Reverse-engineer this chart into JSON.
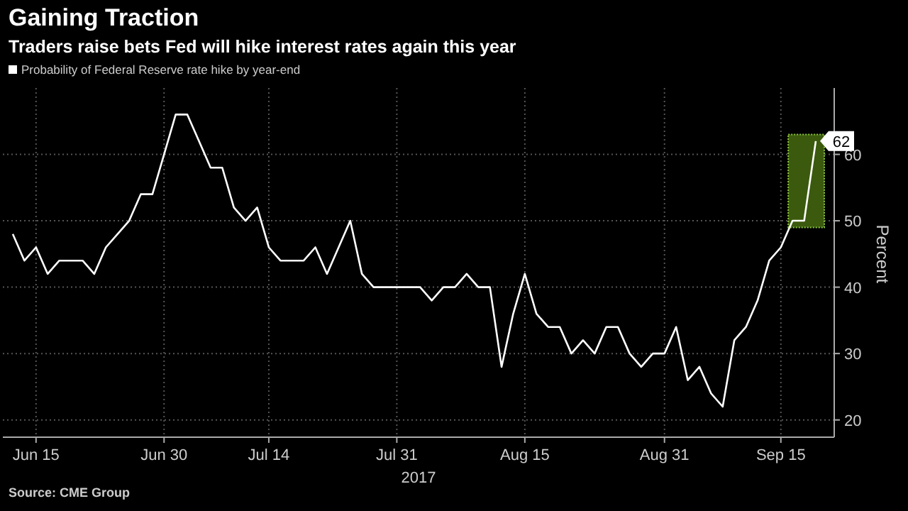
{
  "chart_data": {
    "type": "line",
    "title": "Gaining Traction",
    "subtitle": "Traders raise bets Fed will hike interest rates again this year",
    "xlabel": "2017",
    "ylabel": "Percent",
    "annotations": [
      "Source: CME Group"
    ],
    "categories": [
      null,
      null,
      "Jun 15",
      null,
      null,
      null,
      null,
      null,
      null,
      null,
      null,
      null,
      null,
      "Jun 30",
      null,
      null,
      null,
      null,
      null,
      null,
      null,
      null,
      "Jul 14",
      null,
      null,
      null,
      null,
      null,
      null,
      null,
      null,
      null,
      null,
      "Jul 31",
      null,
      null,
      null,
      null,
      null,
      null,
      null,
      null,
      null,
      null,
      "Aug 15",
      null,
      null,
      null,
      null,
      null,
      null,
      null,
      null,
      null,
      null,
      null,
      "Aug 31",
      null,
      null,
      null,
      null,
      null,
      null,
      null,
      null,
      null,
      "Sep 15",
      null,
      null,
      null
    ],
    "series": [
      {
        "name": "Probability of Federal Reserve rate hike by year-end",
        "color": "#ffffff",
        "values": [
          48,
          44,
          46,
          42,
          44,
          44,
          44,
          42,
          46,
          48,
          50,
          54,
          54,
          60,
          66,
          66,
          62,
          58,
          58,
          52,
          50,
          52,
          46,
          44,
          44,
          44,
          46,
          42,
          46,
          50,
          42,
          40,
          40,
          40,
          40,
          40,
          38,
          40,
          40,
          42,
          40,
          40,
          28,
          36,
          42,
          36,
          34,
          34,
          30,
          32,
          30,
          34,
          34,
          30,
          28,
          30,
          30,
          34,
          26,
          28,
          24,
          22,
          32,
          34,
          38,
          44,
          46,
          50,
          50,
          62
        ],
        "value_labels": [
          null,
          null,
          null,
          null,
          null,
          null,
          null,
          null,
          null,
          null,
          null,
          null,
          null,
          null,
          null,
          null,
          null,
          null,
          null,
          null,
          null,
          null,
          null,
          null,
          null,
          null,
          null,
          null,
          null,
          null,
          null,
          null,
          null,
          null,
          null,
          null,
          null,
          null,
          null,
          null,
          null,
          null,
          null,
          null,
          null,
          null,
          null,
          null,
          null,
          null,
          null,
          null,
          null,
          null,
          null,
          null,
          null,
          null,
          null,
          null,
          null,
          null,
          null,
          null,
          null,
          null,
          null,
          null,
          null,
          "62"
        ]
      }
    ],
    "ylim": [
      17.4,
      70
    ],
    "yticks": [
      20,
      30,
      40,
      50,
      60
    ],
    "grid": true,
    "legend": "top left",
    "marker": "none",
    "line_style": "solid"
  }
}
